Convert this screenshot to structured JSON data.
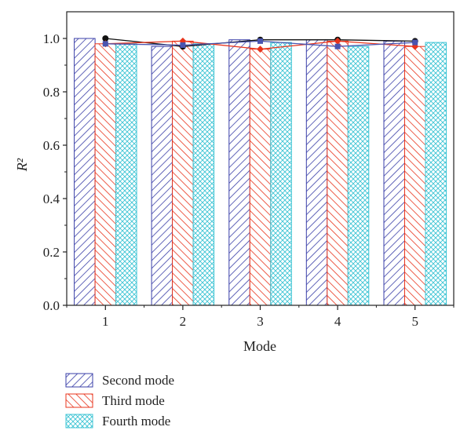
{
  "chart_data": {
    "type": "bar",
    "categories": [
      "1",
      "2",
      "3",
      "4",
      "5"
    ],
    "xlabel": "Mode",
    "ylabel": "R²",
    "ylim": [
      0.0,
      1.1
    ],
    "yticks": [
      "0.0",
      "0.2",
      "0.4",
      "0.6",
      "0.8",
      "1.0"
    ],
    "ytick_values": [
      0.0,
      0.2,
      0.4,
      0.6,
      0.8,
      1.0
    ],
    "grid": false,
    "legend_position": "bottom-left",
    "series": [
      {
        "name": "Second mode",
        "values": [
          1.0,
          0.97,
          0.995,
          0.995,
          0.99
        ],
        "color": "#3a3fa8",
        "pattern": "diagonal-right"
      },
      {
        "name": "Third mode",
        "values": [
          0.98,
          0.99,
          0.96,
          0.99,
          0.97
        ],
        "color": "#e8341c",
        "pattern": "diagonal-left"
      },
      {
        "name": "Fourth mode",
        "values": [
          0.98,
          0.98,
          0.985,
          0.97,
          0.985
        ],
        "color": "#3cc4d4",
        "pattern": "crosshatch"
      }
    ],
    "lines": [
      {
        "values": [
          1.0,
          0.97,
          0.995,
          0.995,
          0.99
        ],
        "color": "#111111",
        "marker": "circle"
      },
      {
        "values": [
          0.98,
          0.99,
          0.96,
          0.99,
          0.97
        ],
        "color": "#e8341c",
        "marker": "diamond"
      },
      {
        "values": [
          0.98,
          0.975,
          0.99,
          0.97,
          0.985
        ],
        "color": "#4a55b0",
        "marker": "square"
      }
    ]
  }
}
